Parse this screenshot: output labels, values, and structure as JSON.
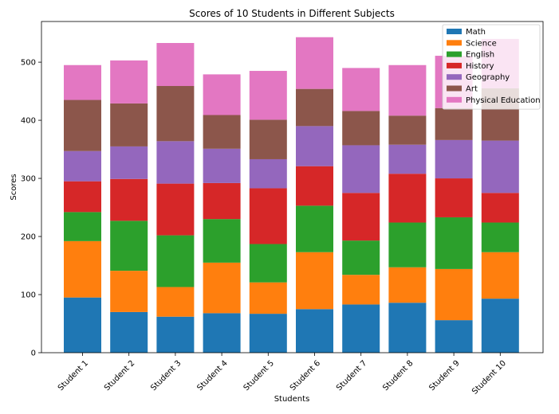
{
  "chart_data": {
    "type": "bar",
    "stacked": true,
    "title": "Scores of 10 Students in Different Subjects",
    "xlabel": "Students",
    "ylabel": "Scores",
    "ylim": [
      0,
      570
    ],
    "yticks": [
      0,
      100,
      200,
      300,
      400,
      500
    ],
    "categories": [
      "Student 1",
      "Student 2",
      "Student 3",
      "Student 4",
      "Student 5",
      "Student 6",
      "Student 7",
      "Student 8",
      "Student 9",
      "Student 10"
    ],
    "legend_position": "top-right",
    "series": [
      {
        "name": "Math",
        "color": "#1f77b4",
        "values": [
          95,
          70,
          62,
          68,
          67,
          75,
          83,
          86,
          56,
          93
        ]
      },
      {
        "name": "Science",
        "color": "#ff7f0e",
        "values": [
          97,
          71,
          51,
          87,
          54,
          98,
          51,
          61,
          88,
          80
        ]
      },
      {
        "name": "English",
        "color": "#2ca02c",
        "values": [
          50,
          86,
          89,
          75,
          66,
          80,
          59,
          77,
          89,
          51
        ]
      },
      {
        "name": "History",
        "color": "#d62728",
        "values": [
          53,
          72,
          89,
          62,
          96,
          68,
          82,
          84,
          67,
          51
        ]
      },
      {
        "name": "Geography",
        "color": "#9467bd",
        "values": [
          52,
          56,
          73,
          59,
          50,
          69,
          82,
          50,
          66,
          90
        ]
      },
      {
        "name": "Art",
        "color": "#8c564b",
        "values": [
          88,
          74,
          95,
          58,
          68,
          64,
          59,
          50,
          55,
          90
        ]
      },
      {
        "name": "Physical Education",
        "color": "#e377c2",
        "values": [
          60,
          74,
          74,
          70,
          84,
          89,
          74,
          87,
          90,
          85
        ]
      }
    ]
  }
}
